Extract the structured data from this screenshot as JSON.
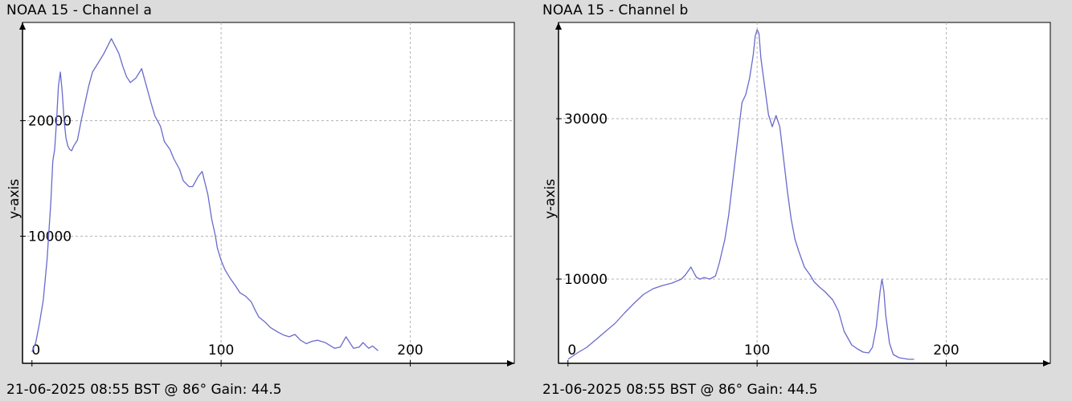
{
  "chart_data": [
    {
      "type": "line",
      "title": "NOAA 15 - Channel a",
      "footer": "21-06-2025 08:55 BST @ 86° Gain: 44.5",
      "xlabel": "",
      "ylabel": "y-axis",
      "xlim": [
        -5,
        255
      ],
      "ylim": [
        -1000,
        28500
      ],
      "x_ticks": [
        0,
        100,
        200
      ],
      "y_ticks": [
        10000,
        20000
      ],
      "grid": true,
      "line_color": "#6a6acd",
      "series": [
        {
          "x": [
            0,
            2,
            4,
            6,
            8,
            10,
            11,
            12,
            13,
            14,
            15,
            16,
            17,
            18,
            19,
            20,
            21,
            22,
            24,
            26,
            28,
            30,
            32,
            35,
            38,
            42,
            46,
            48,
            50,
            52,
            55,
            58,
            60,
            63,
            65,
            68,
            70,
            73,
            75,
            78,
            80,
            83,
            85,
            88,
            90,
            93,
            95,
            97,
            98,
            100,
            102,
            105,
            108,
            110,
            113,
            116,
            118,
            120,
            123,
            126,
            130,
            133,
            136,
            139,
            142,
            145,
            148,
            151,
            155,
            158,
            160,
            163,
            166,
            170,
            173,
            175,
            178,
            180,
            183
          ],
          "y": [
            0,
            800,
            2500,
            4500,
            8000,
            13000,
            16500,
            17500,
            20000,
            23000,
            24200,
            22500,
            20000,
            18500,
            17800,
            17500,
            17400,
            17800,
            18300,
            20000,
            21500,
            23000,
            24200,
            25000,
            25800,
            27100,
            25800,
            24700,
            23800,
            23300,
            23700,
            24500,
            23300,
            21500,
            20400,
            19500,
            18200,
            17500,
            16700,
            15800,
            14800,
            14300,
            14300,
            15200,
            15600,
            13600,
            11500,
            10000,
            9000,
            7900,
            7100,
            6300,
            5600,
            5100,
            4800,
            4300,
            3600,
            3000,
            2600,
            2100,
            1700,
            1450,
            1300,
            1500,
            1000,
            700,
            900,
            1000,
            800,
            500,
            300,
            400,
            1300,
            300,
            400,
            800,
            300,
            500,
            100
          ]
        }
      ]
    },
    {
      "type": "line",
      "title": "NOAA 15 - Channel b",
      "footer": "21-06-2025 08:55 BST @ 86° Gain: 44.5",
      "xlabel": "",
      "ylabel": "y-axis",
      "xlim": [
        -5,
        255
      ],
      "ylim": [
        -500,
        42000
      ],
      "x_ticks": [
        0,
        100,
        200
      ],
      "y_ticks": [
        10000,
        30000
      ],
      "grid": true,
      "line_color": "#6a6acd",
      "series": [
        {
          "x": [
            0,
            5,
            10,
            15,
            20,
            25,
            30,
            35,
            40,
            45,
            50,
            55,
            60,
            62,
            65,
            67,
            68,
            70,
            72,
            75,
            78,
            80,
            83,
            85,
            88,
            90,
            92,
            94,
            96,
            98,
            99,
            100,
            101,
            102,
            104,
            106,
            108,
            110,
            112,
            114,
            116,
            118,
            120,
            122,
            125,
            128,
            130,
            133,
            136,
            140,
            143,
            146,
            150,
            153,
            156,
            159,
            161,
            163,
            165,
            166,
            167,
            168,
            170,
            172,
            175,
            180,
            183
          ],
          "y": [
            0,
            800,
            1500,
            2500,
            3500,
            4500,
            5800,
            7000,
            8100,
            8800,
            9200,
            9500,
            10000,
            10500,
            11500,
            10600,
            10200,
            10000,
            10200,
            10000,
            10400,
            12000,
            15000,
            18000,
            24000,
            28000,
            32000,
            33000,
            35000,
            38000,
            40300,
            41100,
            40600,
            37500,
            34000,
            30500,
            29000,
            30400,
            29000,
            25000,
            21000,
            17500,
            15000,
            13500,
            11500,
            10500,
            9700,
            9000,
            8400,
            7400,
            6000,
            3500,
            1800,
            1300,
            900,
            800,
            1500,
            4000,
            8500,
            10000,
            8500,
            5500,
            2000,
            600,
            200,
            0,
            0
          ]
        }
      ]
    }
  ]
}
